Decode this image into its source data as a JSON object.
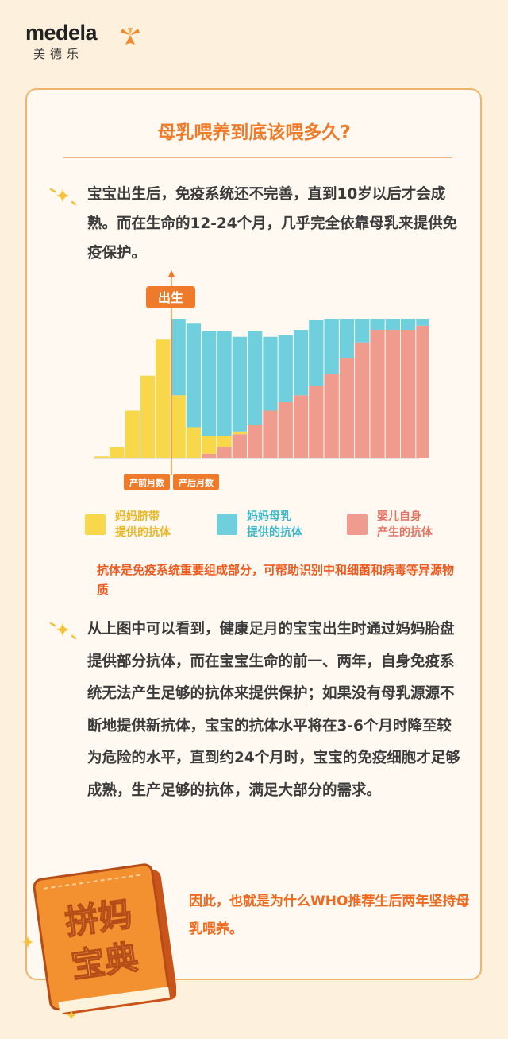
{
  "brand": {
    "name": "medela",
    "name_cn": "美德乐"
  },
  "title": "母乳喂养到底该喂多久?",
  "paragraph1": "宝宝出生后，免疫系统还不完善，直到10岁以后才会成熟。而在生命的12-24个月，几乎完全依靠母乳来提供免疫保护。",
  "paragraph2": "从上图中可以看到，健康足月的宝宝出生时通过妈妈胎盘提供部分抗体，而在宝宝生命的前一、两年，自身免疫系统无法产生足够的抗体来提供保护；如果没有母乳源源不断地提供新抗体，宝宝的抗体水平将在3-6个月时降至较为危险的水平，直到约24个月时，宝宝的免疫细胞才足够成熟，生产足够的抗体，满足大部分的需求。",
  "note": "抗体是免疫系统重要组成部分，可帮助识别中和细菌和病毒等异源物质",
  "closing": "因此，也就是为什么WHO推荐生后两年坚持母乳喂养。",
  "book": {
    "line1": "拼妈",
    "line2": "宝典"
  },
  "colors": {
    "accent": "#ef7b2a",
    "yellow": "#f9d74a",
    "blue": "#6fcfdc",
    "pink": "#ef9b8d"
  },
  "chart_data": {
    "type": "bar",
    "stacked": true,
    "birth_label": "出生",
    "prenatal_label": "产前月数",
    "postnatal_label": "产后月数",
    "prenatal_values": [
      1,
      8,
      34,
      59,
      85
    ],
    "series": [
      {
        "name": "妈妈脐带提供的抗体",
        "color": "#f9d74a",
        "values": [
          45,
          22,
          13,
          8,
          2,
          0,
          0,
          0,
          0,
          0,
          0,
          0,
          0,
          0,
          0,
          0,
          0
        ]
      },
      {
        "name": "妈妈母乳提供的抗体",
        "color": "#6fcfdc",
        "values": [
          55,
          75,
          75,
          75,
          68,
          67,
          53,
          48,
          47,
          47,
          40,
          28,
          17,
          8,
          8,
          8,
          5
        ]
      },
      {
        "name": "婴儿自身产生的抗体",
        "color": "#ef9b8d",
        "values": [
          0,
          0,
          3,
          8,
          17,
          24,
          34,
          40,
          45,
          52,
          60,
          72,
          83,
          92,
          92,
          92,
          95
        ]
      }
    ],
    "legend": [
      {
        "line1": "妈妈脐带",
        "line2": "提供的抗体",
        "color": "#f9d74a",
        "text_color": "#e9b624"
      },
      {
        "line1": "妈妈母乳",
        "line2": "提供的抗体",
        "color": "#6fcfdc",
        "text_color": "#3fb7c8"
      },
      {
        "line1": "婴儿自身",
        "line2": "产生的抗体",
        "color": "#ef9b8d",
        "text_color": "#e27566"
      }
    ]
  }
}
